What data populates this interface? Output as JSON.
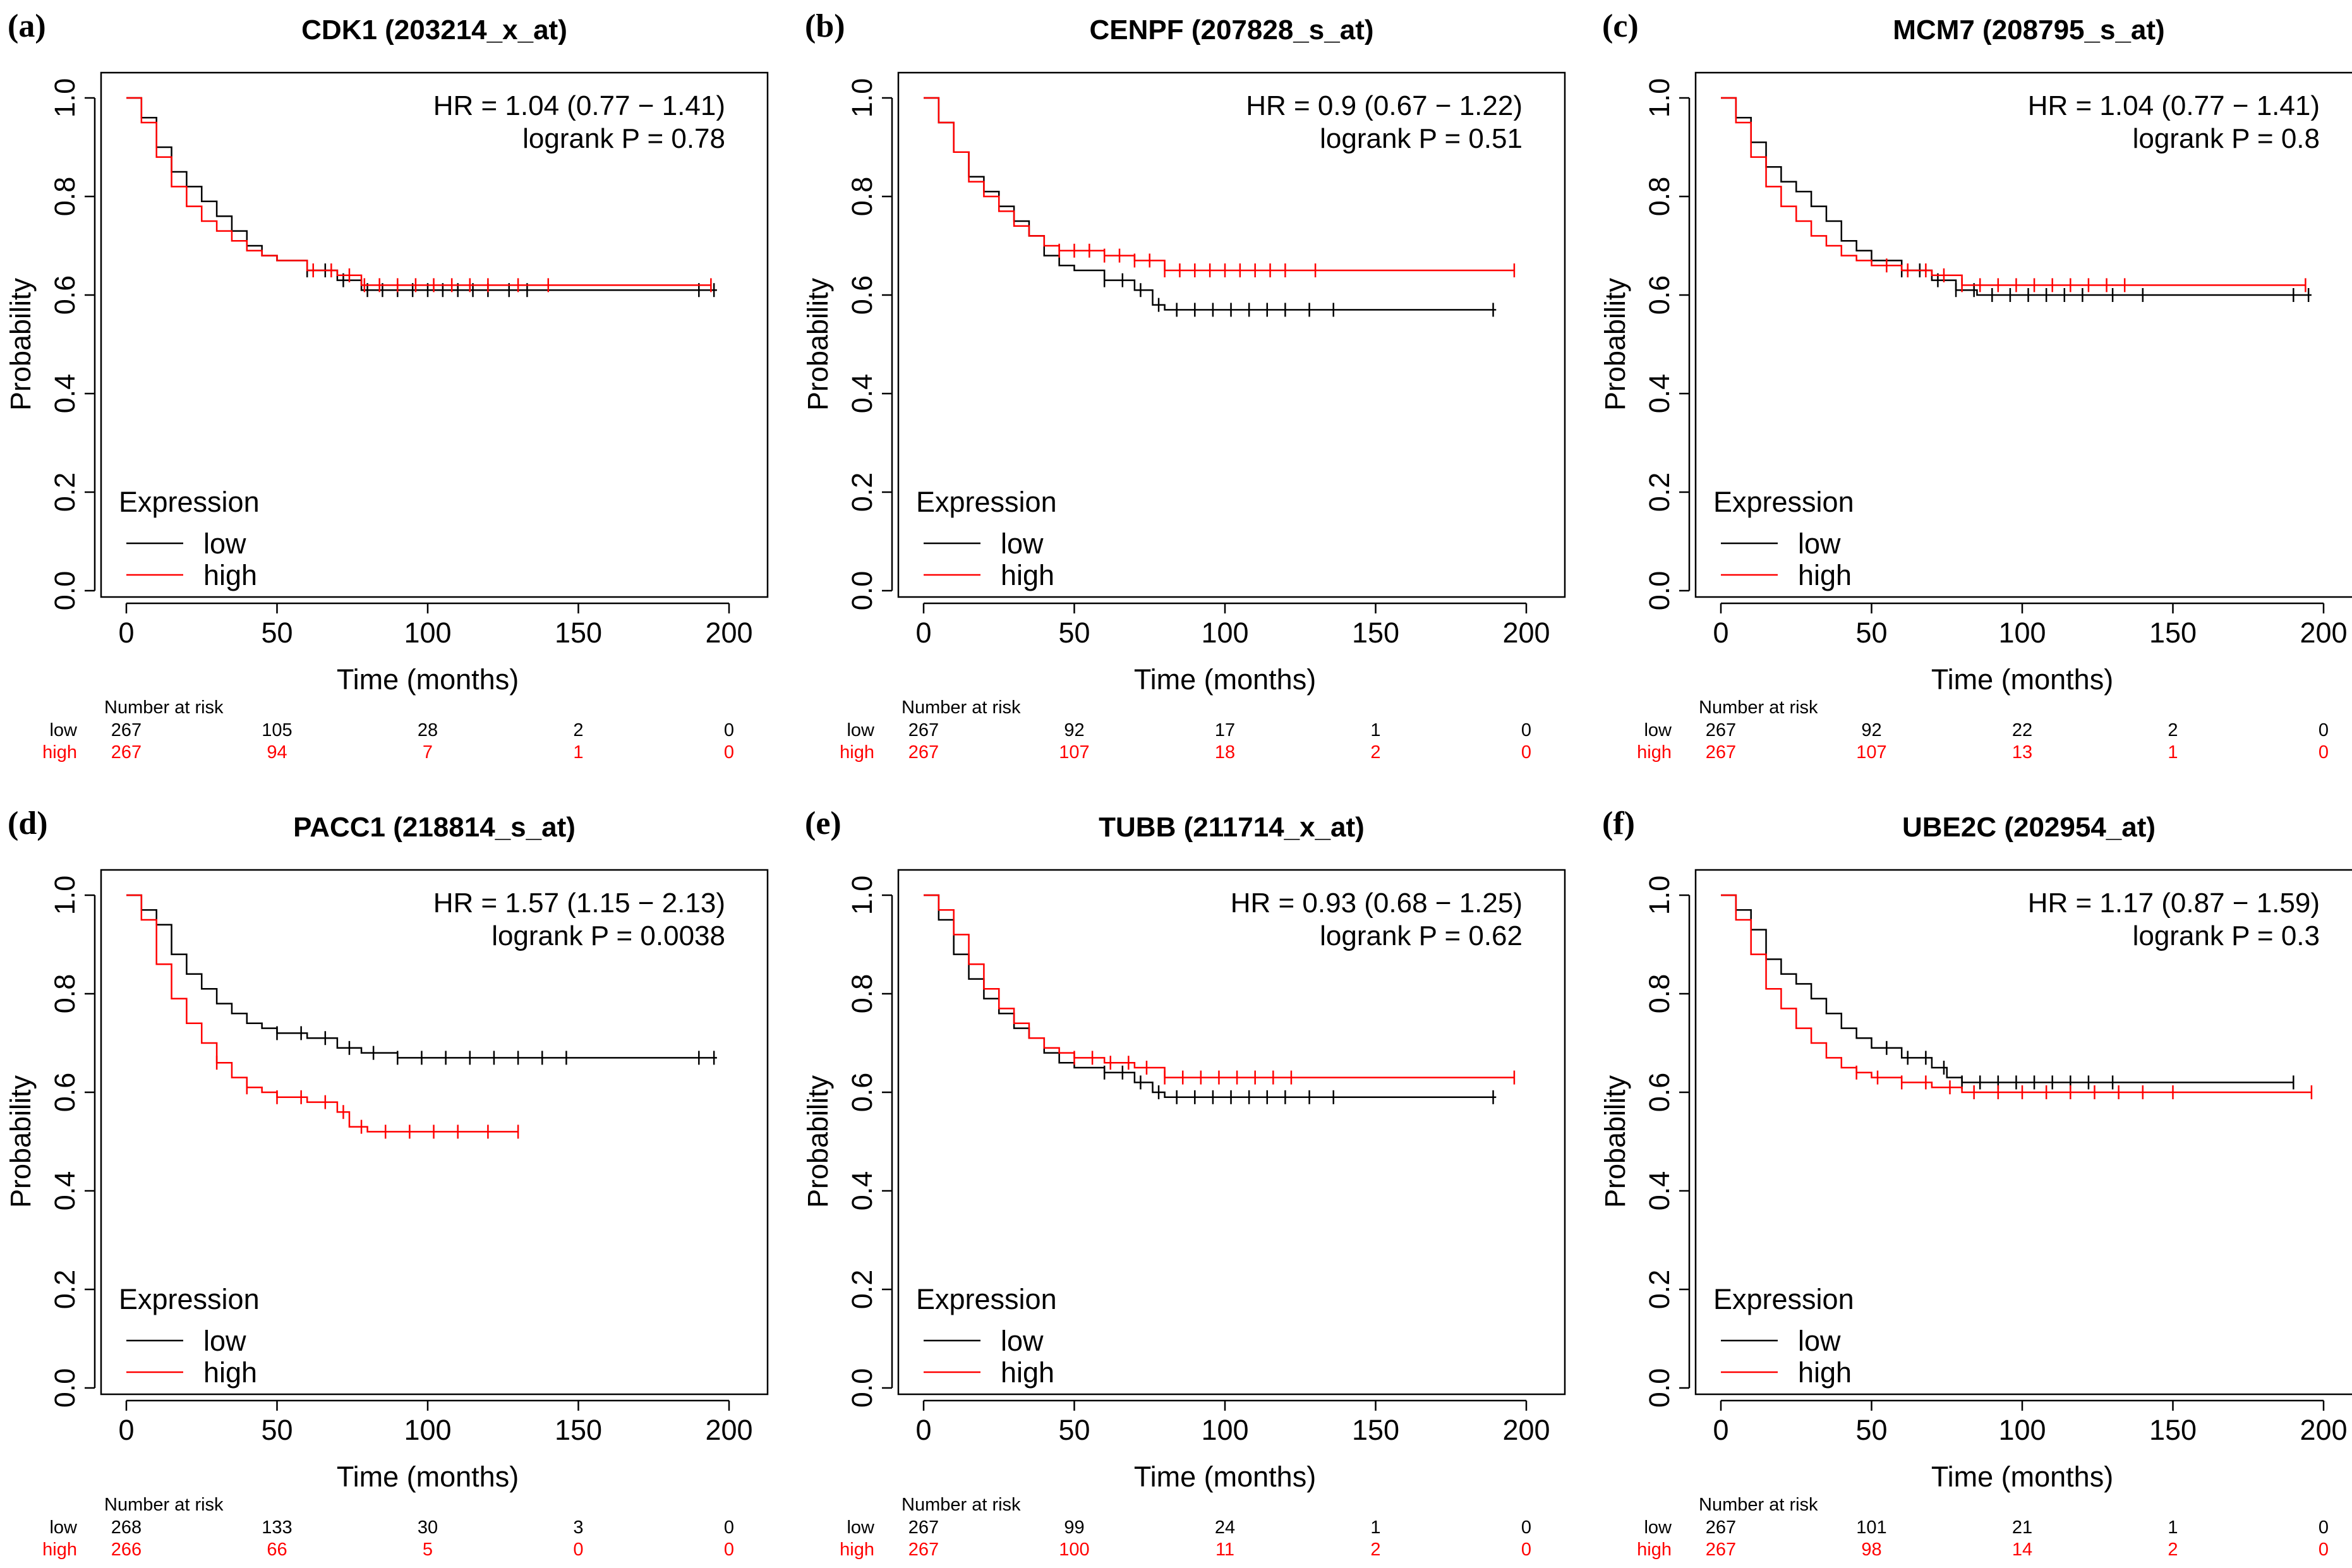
{
  "figure": {
    "colors": {
      "low": "#000000",
      "high": "#ff0000"
    },
    "axis_labels": {
      "x": "Time (months)",
      "y": "Probability"
    },
    "legend": {
      "title": "Expression",
      "low_label": "low",
      "high_label": "high"
    },
    "risk_table": {
      "title": "Number at risk",
      "low_label": "low",
      "high_label": "high"
    }
  },
  "chart_data": [
    {
      "type": "line",
      "panel": "(a)",
      "title": "CDK1   (203214_x_at)",
      "xlabel": "Time (months)",
      "ylabel": "Probability",
      "xlim": [
        0,
        200
      ],
      "ylim": [
        0,
        1
      ],
      "x_ticks": [
        0,
        50,
        100,
        150,
        200
      ],
      "y_ticks": [
        0.0,
        0.2,
        0.4,
        0.6,
        0.8,
        1.0
      ],
      "hr_text": "HR = 1.04 (0.77 − 1.41)",
      "p_text": "logrank P = 0.78",
      "series": [
        {
          "name": "low",
          "x": [
            0,
            5,
            10,
            15,
            20,
            25,
            30,
            35,
            40,
            45,
            50,
            60,
            70,
            78,
            85,
            100,
            150,
            196
          ],
          "y": [
            1.0,
            0.96,
            0.9,
            0.85,
            0.82,
            0.79,
            0.76,
            0.73,
            0.7,
            0.68,
            0.67,
            0.65,
            0.63,
            0.61,
            0.61,
            0.61,
            0.61,
            0.61
          ],
          "censor_x": [
            60,
            66,
            72,
            80,
            85,
            90,
            95,
            100,
            105,
            110,
            115,
            120,
            127,
            133,
            190,
            195
          ]
        },
        {
          "name": "high",
          "x": [
            0,
            5,
            10,
            15,
            20,
            25,
            30,
            35,
            40,
            45,
            50,
            60,
            70,
            78,
            85,
            100,
            150,
            194
          ],
          "y": [
            1.0,
            0.95,
            0.88,
            0.82,
            0.78,
            0.75,
            0.73,
            0.71,
            0.69,
            0.68,
            0.67,
            0.65,
            0.64,
            0.62,
            0.62,
            0.62,
            0.62,
            0.62
          ],
          "censor_x": [
            62,
            68,
            74,
            79,
            84,
            90,
            96,
            102,
            108,
            114,
            120,
            130,
            140,
            194
          ]
        }
      ],
      "risk_times": [
        0,
        50,
        100,
        150,
        200
      ],
      "risk_low": [
        267,
        105,
        28,
        2,
        0
      ],
      "risk_high": [
        267,
        94,
        7,
        1,
        0
      ]
    },
    {
      "type": "line",
      "panel": "(b)",
      "title": "CENPF (207828_s_at)",
      "xlabel": "Time (months)",
      "ylabel": "Probability",
      "xlim": [
        0,
        200
      ],
      "ylim": [
        0,
        1
      ],
      "x_ticks": [
        0,
        50,
        100,
        150,
        200
      ],
      "y_ticks": [
        0.0,
        0.2,
        0.4,
        0.6,
        0.8,
        1.0
      ],
      "hr_text": "HR = 0.9 (0.67 − 1.22)",
      "p_text": "logrank P = 0.51",
      "series": [
        {
          "name": "low",
          "x": [
            0,
            5,
            10,
            15,
            20,
            25,
            30,
            35,
            40,
            45,
            50,
            60,
            70,
            76,
            80,
            100,
            150,
            190
          ],
          "y": [
            1.0,
            0.95,
            0.89,
            0.84,
            0.81,
            0.78,
            0.75,
            0.72,
            0.68,
            0.66,
            0.65,
            0.63,
            0.61,
            0.58,
            0.57,
            0.57,
            0.57,
            0.57
          ],
          "censor_x": [
            60,
            66,
            72,
            78,
            84,
            90,
            96,
            102,
            108,
            114,
            120,
            128,
            136,
            189
          ]
        },
        {
          "name": "high",
          "x": [
            0,
            5,
            10,
            15,
            20,
            25,
            30,
            35,
            40,
            45,
            50,
            60,
            70,
            80,
            100,
            150,
            196
          ],
          "y": [
            1.0,
            0.95,
            0.89,
            0.83,
            0.8,
            0.77,
            0.74,
            0.72,
            0.7,
            0.69,
            0.69,
            0.68,
            0.67,
            0.65,
            0.65,
            0.65,
            0.65
          ],
          "censor_x": [
            45,
            50,
            55,
            60,
            65,
            70,
            75,
            80,
            85,
            90,
            95,
            100,
            105,
            110,
            115,
            120,
            130,
            196
          ]
        }
      ],
      "risk_times": [
        0,
        50,
        100,
        150,
        200
      ],
      "risk_low": [
        267,
        92,
        17,
        1,
        0
      ],
      "risk_high": [
        267,
        107,
        18,
        2,
        0
      ]
    },
    {
      "type": "line",
      "panel": "(c)",
      "title": "MCM7 (208795_s_at)",
      "xlabel": "Time (months)",
      "ylabel": "Probability",
      "xlim": [
        0,
        200
      ],
      "ylim": [
        0,
        1
      ],
      "x_ticks": [
        0,
        50,
        100,
        150,
        200
      ],
      "y_ticks": [
        0.0,
        0.2,
        0.4,
        0.6,
        0.8,
        1.0
      ],
      "hr_text": "HR = 1.04 (0.77 − 1.41)",
      "p_text": "logrank P = 0.8",
      "series": [
        {
          "name": "low",
          "x": [
            0,
            5,
            10,
            15,
            20,
            25,
            30,
            35,
            40,
            45,
            50,
            60,
            70,
            78,
            85,
            100,
            150,
            196
          ],
          "y": [
            1.0,
            0.96,
            0.91,
            0.86,
            0.83,
            0.81,
            0.78,
            0.75,
            0.71,
            0.69,
            0.67,
            0.65,
            0.63,
            0.61,
            0.6,
            0.6,
            0.6,
            0.6
          ],
          "censor_x": [
            60,
            66,
            72,
            78,
            84,
            90,
            96,
            102,
            108,
            114,
            120,
            130,
            140,
            190,
            195
          ]
        },
        {
          "name": "high",
          "x": [
            0,
            5,
            10,
            15,
            20,
            25,
            30,
            35,
            40,
            45,
            50,
            60,
            70,
            80,
            100,
            150,
            194
          ],
          "y": [
            1.0,
            0.95,
            0.88,
            0.82,
            0.78,
            0.75,
            0.72,
            0.7,
            0.68,
            0.67,
            0.66,
            0.65,
            0.64,
            0.62,
            0.62,
            0.62,
            0.62
          ],
          "censor_x": [
            55,
            62,
            68,
            74,
            80,
            86,
            92,
            98,
            104,
            110,
            116,
            122,
            128,
            134,
            194
          ]
        }
      ],
      "risk_times": [
        0,
        50,
        100,
        150,
        200
      ],
      "risk_low": [
        267,
        92,
        22,
        2,
        0
      ],
      "risk_high": [
        267,
        107,
        13,
        1,
        0
      ]
    },
    {
      "type": "line",
      "panel": "(d)",
      "title": "PACC1   (218814_s_at)",
      "xlabel": "Time (months)",
      "ylabel": "Probability",
      "xlim": [
        0,
        200
      ],
      "ylim": [
        0,
        1
      ],
      "x_ticks": [
        0,
        50,
        100,
        150,
        200
      ],
      "y_ticks": [
        0.0,
        0.2,
        0.4,
        0.6,
        0.8,
        1.0
      ],
      "hr_text": "HR = 1.57 (1.15 − 2.13)",
      "p_text": "logrank P = 0.0038",
      "series": [
        {
          "name": "low",
          "x": [
            0,
            5,
            10,
            15,
            20,
            25,
            30,
            35,
            40,
            45,
            50,
            60,
            70,
            78,
            90,
            100,
            150,
            196
          ],
          "y": [
            1.0,
            0.97,
            0.94,
            0.88,
            0.84,
            0.81,
            0.78,
            0.76,
            0.74,
            0.73,
            0.72,
            0.71,
            0.69,
            0.68,
            0.67,
            0.67,
            0.67,
            0.67
          ],
          "censor_x": [
            50,
            58,
            66,
            74,
            82,
            90,
            98,
            106,
            114,
            122,
            130,
            138,
            146,
            190,
            195
          ]
        },
        {
          "name": "high",
          "x": [
            0,
            5,
            10,
            15,
            20,
            25,
            30,
            35,
            40,
            45,
            50,
            60,
            70,
            74,
            80,
            100,
            130
          ],
          "y": [
            1.0,
            0.95,
            0.86,
            0.79,
            0.74,
            0.7,
            0.66,
            0.63,
            0.61,
            0.6,
            0.59,
            0.58,
            0.56,
            0.53,
            0.52,
            0.52,
            0.52
          ],
          "censor_x": [
            30,
            40,
            50,
            58,
            66,
            72,
            78,
            86,
            94,
            102,
            110,
            120,
            130
          ]
        }
      ],
      "risk_times": [
        0,
        50,
        100,
        150,
        200
      ],
      "risk_low": [
        268,
        133,
        30,
        3,
        0
      ],
      "risk_high": [
        266,
        66,
        5,
        0,
        0
      ]
    },
    {
      "type": "line",
      "panel": "(e)",
      "title": "TUBB (211714_x_at)",
      "xlabel": "Time (months)",
      "ylabel": "Probability",
      "xlim": [
        0,
        200
      ],
      "ylim": [
        0,
        1
      ],
      "x_ticks": [
        0,
        50,
        100,
        150,
        200
      ],
      "y_ticks": [
        0.0,
        0.2,
        0.4,
        0.6,
        0.8,
        1.0
      ],
      "hr_text": "HR = 0.93 (0.68 − 1.25)",
      "p_text": "logrank P = 0.62",
      "series": [
        {
          "name": "low",
          "x": [
            0,
            5,
            10,
            15,
            20,
            25,
            30,
            35,
            40,
            45,
            50,
            60,
            70,
            76,
            80,
            100,
            150,
            190
          ],
          "y": [
            1.0,
            0.95,
            0.88,
            0.83,
            0.79,
            0.76,
            0.73,
            0.71,
            0.68,
            0.66,
            0.65,
            0.64,
            0.62,
            0.6,
            0.59,
            0.59,
            0.59,
            0.59
          ],
          "censor_x": [
            60,
            66,
            72,
            78,
            84,
            90,
            96,
            102,
            108,
            114,
            120,
            128,
            136,
            189
          ]
        },
        {
          "name": "high",
          "x": [
            0,
            5,
            10,
            15,
            20,
            25,
            30,
            35,
            40,
            45,
            50,
            60,
            70,
            80,
            100,
            150,
            196
          ],
          "y": [
            1.0,
            0.97,
            0.92,
            0.86,
            0.81,
            0.77,
            0.74,
            0.71,
            0.69,
            0.68,
            0.67,
            0.66,
            0.65,
            0.63,
            0.63,
            0.63,
            0.63
          ],
          "censor_x": [
            50,
            56,
            62,
            68,
            74,
            80,
            86,
            92,
            98,
            104,
            110,
            116,
            122,
            196
          ]
        }
      ],
      "risk_times": [
        0,
        50,
        100,
        150,
        200
      ],
      "risk_low": [
        267,
        99,
        24,
        1,
        0
      ],
      "risk_high": [
        267,
        100,
        11,
        2,
        0
      ]
    },
    {
      "type": "line",
      "panel": "(f)",
      "title": "UBE2C (202954_at)",
      "xlabel": "Time (months)",
      "ylabel": "Probability",
      "xlim": [
        0,
        200
      ],
      "ylim": [
        0,
        1
      ],
      "x_ticks": [
        0,
        50,
        100,
        150,
        200
      ],
      "y_ticks": [
        0.0,
        0.2,
        0.4,
        0.6,
        0.8,
        1.0
      ],
      "hr_text": "HR = 1.17 (0.87 − 1.59)",
      "p_text": "logrank P = 0.3",
      "series": [
        {
          "name": "low",
          "x": [
            0,
            5,
            10,
            15,
            20,
            25,
            30,
            35,
            40,
            45,
            50,
            60,
            70,
            75,
            80,
            100,
            150,
            190
          ],
          "y": [
            1.0,
            0.97,
            0.93,
            0.87,
            0.84,
            0.82,
            0.79,
            0.76,
            0.73,
            0.71,
            0.69,
            0.67,
            0.65,
            0.63,
            0.62,
            0.62,
            0.62,
            0.62
          ],
          "censor_x": [
            55,
            62,
            68,
            74,
            80,
            86,
            92,
            98,
            104,
            110,
            116,
            122,
            130,
            190
          ]
        },
        {
          "name": "high",
          "x": [
            0,
            5,
            10,
            15,
            20,
            25,
            30,
            35,
            40,
            45,
            50,
            60,
            70,
            80,
            100,
            150,
            196
          ],
          "y": [
            1.0,
            0.95,
            0.88,
            0.81,
            0.77,
            0.73,
            0.7,
            0.67,
            0.65,
            0.64,
            0.63,
            0.62,
            0.61,
            0.6,
            0.6,
            0.6,
            0.6
          ],
          "censor_x": [
            45,
            52,
            60,
            68,
            76,
            84,
            92,
            100,
            108,
            116,
            124,
            132,
            140,
            150,
            196
          ]
        }
      ],
      "risk_times": [
        0,
        50,
        100,
        150,
        200
      ],
      "risk_low": [
        267,
        101,
        21,
        1,
        0
      ],
      "risk_high": [
        267,
        98,
        14,
        2,
        0
      ]
    }
  ]
}
